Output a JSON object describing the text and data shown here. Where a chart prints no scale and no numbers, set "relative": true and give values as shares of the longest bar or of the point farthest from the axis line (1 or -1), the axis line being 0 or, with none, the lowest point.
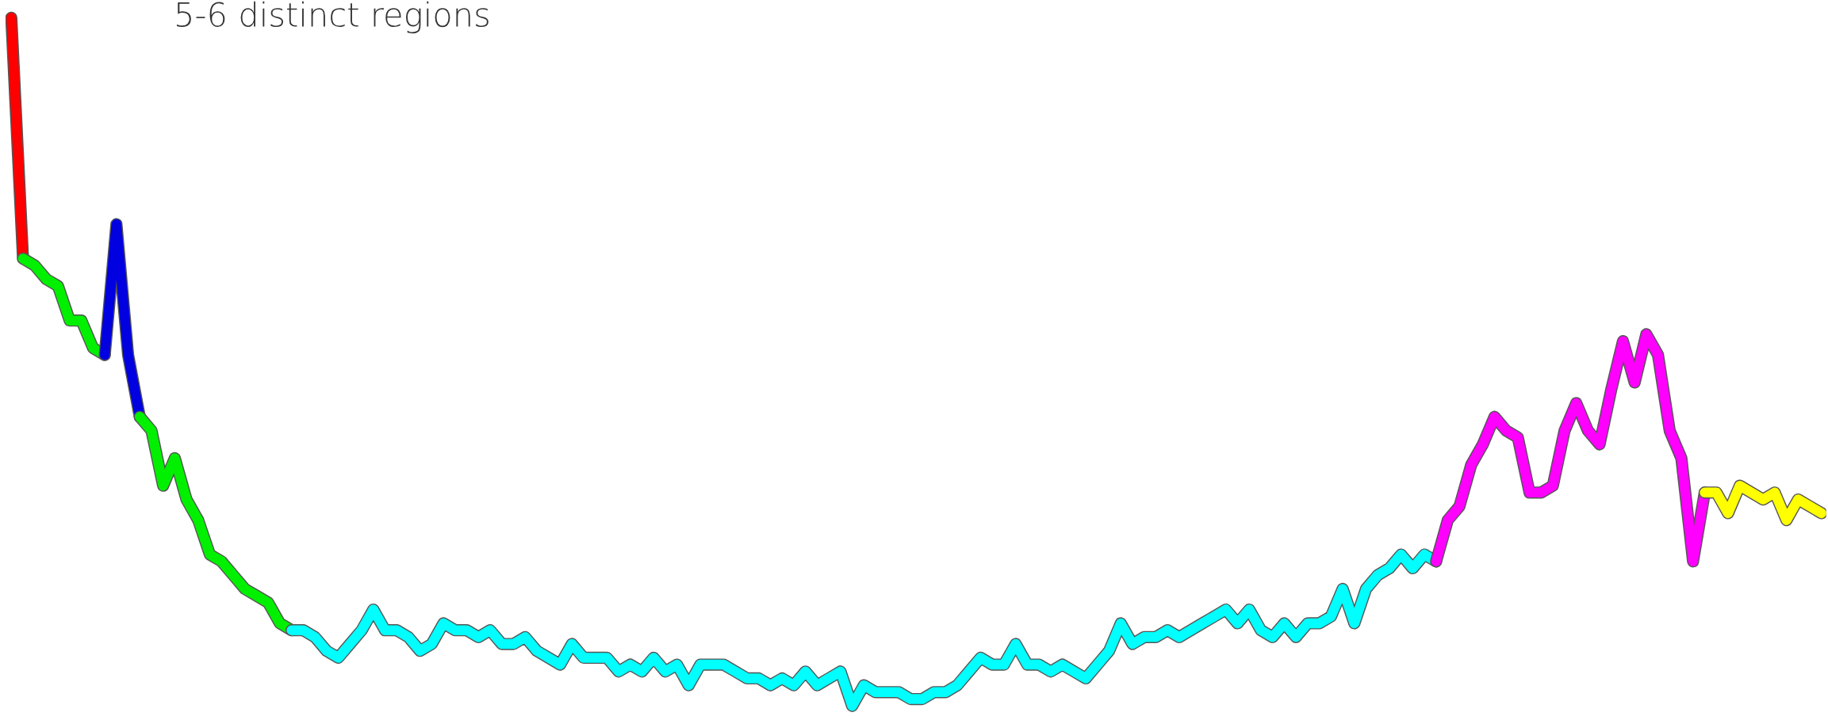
{
  "chart_data": {
    "type": "line",
    "relative": true,
    "title": "5-6 distinct regions",
    "categories": [
      null,
      null,
      null,
      null,
      null,
      null,
      null,
      null,
      null,
      null,
      null,
      null,
      null,
      null,
      null,
      null,
      null,
      null,
      null,
      null,
      null,
      null,
      null,
      null,
      null,
      null,
      null,
      null,
      null,
      null,
      null,
      null,
      null,
      null,
      null,
      null,
      null,
      null,
      null,
      null,
      null,
      null,
      null,
      null,
      null,
      null,
      null,
      null,
      null,
      null,
      null,
      null,
      null,
      null,
      null,
      null,
      null,
      null,
      null,
      null,
      null,
      null,
      null,
      null,
      null,
      null,
      null,
      null,
      null,
      null,
      null,
      null,
      null,
      null,
      null,
      null,
      null,
      null,
      null,
      null,
      null,
      null,
      null,
      null,
      null,
      null,
      null,
      null,
      null,
      null,
      null,
      null,
      null,
      null,
      null,
      null,
      null,
      null,
      null,
      null,
      null,
      null,
      null,
      null,
      null,
      null,
      null,
      null,
      null,
      null,
      null,
      null,
      null,
      null,
      null,
      null,
      null,
      null,
      null,
      null,
      null,
      null,
      null,
      null,
      null,
      null,
      null,
      null,
      null,
      null,
      null,
      null,
      null,
      null,
      null,
      null,
      null,
      null,
      null,
      null,
      null,
      null,
      null,
      null,
      null,
      null,
      null,
      null,
      null,
      null,
      null,
      null,
      null,
      null,
      null,
      null
    ],
    "series": [
      {
        "color": "#ff0000",
        "values": [
          1.0,
          0.65,
          null,
          null,
          null,
          null,
          null,
          null,
          null,
          null,
          null,
          null,
          null,
          null,
          null,
          null,
          null,
          null,
          null,
          null,
          null,
          null,
          null,
          null,
          null,
          null,
          null,
          null,
          null,
          null,
          null,
          null,
          null,
          null,
          null,
          null,
          null,
          null,
          null,
          null,
          null,
          null,
          null,
          null,
          null,
          null,
          null,
          null,
          null,
          null,
          null,
          null,
          null,
          null,
          null,
          null,
          null,
          null,
          null,
          null,
          null,
          null,
          null,
          null,
          null,
          null,
          null,
          null,
          null,
          null,
          null,
          null,
          null,
          null,
          null,
          null,
          null,
          null,
          null,
          null,
          null,
          null,
          null,
          null,
          null,
          null,
          null,
          null,
          null,
          null,
          null,
          null,
          null,
          null,
          null,
          null,
          null,
          null,
          null,
          null,
          null,
          null,
          null,
          null,
          null,
          null,
          null,
          null,
          null,
          null,
          null,
          null,
          null,
          null,
          null,
          null,
          null,
          null,
          null,
          null,
          null,
          null,
          null,
          null,
          null,
          null,
          null,
          null,
          null,
          null,
          null,
          null,
          null,
          null,
          null,
          null,
          null,
          null,
          null,
          null,
          null,
          null,
          null,
          null,
          null,
          null,
          null,
          null,
          null,
          null,
          null,
          null,
          null,
          null,
          null,
          null
        ]
      },
      {
        "color": "#00f000",
        "values": [
          null,
          0.65,
          0.64,
          0.62,
          0.61,
          0.56,
          0.56,
          0.52,
          0.51,
          null,
          null,
          null,
          null,
          null,
          null,
          null,
          null,
          null,
          null,
          null,
          null,
          null,
          null,
          null,
          null,
          null,
          null,
          null,
          null,
          null,
          null,
          null,
          null,
          null,
          null,
          null,
          null,
          null,
          null,
          null,
          null,
          null,
          null,
          null,
          null,
          null,
          null,
          null,
          null,
          null,
          null,
          null,
          null,
          null,
          null,
          null,
          null,
          null,
          null,
          null,
          null,
          null,
          null,
          null,
          null,
          null,
          null,
          null,
          null,
          null,
          null,
          null,
          null,
          null,
          null,
          null,
          null,
          null,
          null,
          null,
          null,
          null,
          null,
          null,
          null,
          null,
          null,
          null,
          null,
          null,
          null,
          null,
          null,
          null,
          null,
          null,
          null,
          null,
          null,
          null,
          null,
          null,
          null,
          null,
          null,
          null,
          null,
          null,
          null,
          null,
          null,
          null,
          null,
          null,
          null,
          null,
          null,
          null,
          null,
          null,
          null,
          null,
          null,
          null,
          null,
          null,
          null,
          null,
          null,
          null,
          null,
          null,
          null,
          null,
          null,
          null,
          null,
          null,
          null,
          null,
          null,
          null,
          null,
          null,
          null,
          null,
          null,
          null,
          null,
          null,
          null,
          null,
          null,
          null,
          null,
          null
        ]
      },
      {
        "color": "#0000e0",
        "values": [
          null,
          null,
          null,
          null,
          null,
          null,
          null,
          null,
          0.51,
          0.7,
          0.51,
          0.42,
          null,
          null,
          null,
          null,
          null,
          null,
          null,
          null,
          null,
          null,
          null,
          null,
          null,
          null,
          null,
          null,
          null,
          null,
          null,
          null,
          null,
          null,
          null,
          null,
          null,
          null,
          null,
          null,
          null,
          null,
          null,
          null,
          null,
          null,
          null,
          null,
          null,
          null,
          null,
          null,
          null,
          null,
          null,
          null,
          null,
          null,
          null,
          null,
          null,
          null,
          null,
          null,
          null,
          null,
          null,
          null,
          null,
          null,
          null,
          null,
          null,
          null,
          null,
          null,
          null,
          null,
          null,
          null,
          null,
          null,
          null,
          null,
          null,
          null,
          null,
          null,
          null,
          null,
          null,
          null,
          null,
          null,
          null,
          null,
          null,
          null,
          null,
          null,
          null,
          null,
          null,
          null,
          null,
          null,
          null,
          null,
          null,
          null,
          null,
          null,
          null,
          null,
          null,
          null,
          null,
          null,
          null,
          null,
          null,
          null,
          null,
          null,
          null,
          null,
          null,
          null,
          null,
          null,
          null,
          null,
          null,
          null,
          null,
          null,
          null,
          null,
          null,
          null,
          null,
          null,
          null,
          null,
          null,
          null,
          null,
          null,
          null,
          null,
          null,
          null,
          null,
          null,
          null,
          null
        ]
      },
      {
        "color": "#00f000",
        "values": [
          null,
          null,
          null,
          null,
          null,
          null,
          null,
          null,
          null,
          null,
          null,
          0.42,
          0.4,
          0.32,
          0.36,
          0.3,
          0.27,
          0.22,
          0.21,
          0.19,
          0.17,
          0.16,
          0.15,
          0.12,
          0.11,
          null,
          null,
          null,
          null,
          null,
          null,
          null,
          null,
          null,
          null,
          null,
          null,
          null,
          null,
          null,
          null,
          null,
          null,
          null,
          null,
          null,
          null,
          null,
          null,
          null,
          null,
          null,
          null,
          null,
          null,
          null,
          null,
          null,
          null,
          null,
          null,
          null,
          null,
          null,
          null,
          null,
          null,
          null,
          null,
          null,
          null,
          null,
          null,
          null,
          null,
          null,
          null,
          null,
          null,
          null,
          null,
          null,
          null,
          null,
          null,
          null,
          null,
          null,
          null,
          null,
          null,
          null,
          null,
          null,
          null,
          null,
          null,
          null,
          null,
          null,
          null,
          null,
          null,
          null,
          null,
          null,
          null,
          null,
          null,
          null,
          null,
          null,
          null,
          null,
          null,
          null,
          null,
          null,
          null,
          null,
          null,
          null,
          null,
          null,
          null,
          null,
          null,
          null,
          null,
          null,
          null,
          null,
          null,
          null,
          null,
          null,
          null,
          null,
          null,
          null,
          null,
          null,
          null,
          null,
          null,
          null,
          null,
          null,
          null,
          null,
          null,
          null,
          null,
          null,
          null,
          null
        ]
      },
      {
        "color": "#00ffff",
        "values": [
          null,
          null,
          null,
          null,
          null,
          null,
          null,
          null,
          null,
          null,
          null,
          null,
          null,
          null,
          null,
          null,
          null,
          null,
          null,
          null,
          null,
          null,
          null,
          null,
          0.11,
          0.11,
          0.1,
          0.08,
          0.07,
          0.09,
          0.11,
          0.14,
          0.11,
          0.11,
          0.1,
          0.08,
          0.09,
          0.12,
          0.11,
          0.11,
          0.1,
          0.11,
          0.09,
          0.09,
          0.1,
          0.08,
          0.07,
          0.06,
          0.09,
          0.07,
          0.07,
          0.07,
          0.05,
          0.06,
          0.05,
          0.07,
          0.05,
          0.06,
          0.03,
          0.06,
          0.06,
          0.06,
          0.05,
          0.04,
          0.04,
          0.03,
          0.04,
          0.03,
          0.05,
          0.03,
          0.04,
          0.05,
          0,
          0.03,
          0.02,
          0.02,
          0.02,
          0.01,
          0.01,
          0.02,
          0.02,
          0.03,
          0.05,
          0.07,
          0.06,
          0.06,
          0.09,
          0.06,
          0.06,
          0.05,
          0.06,
          0.05,
          0.04,
          0.06,
          0.08,
          0.12,
          0.09,
          0.1,
          0.1,
          0.11,
          0.1,
          0.11,
          0.12,
          0.13,
          0.14,
          0.12,
          0.14,
          0.11,
          0.1,
          0.12,
          0.1,
          0.12,
          0.12,
          0.13,
          0.17,
          0.12,
          0.17,
          0.19,
          0.2,
          0.22,
          0.2,
          0.22,
          0.21,
          null,
          null,
          null,
          null,
          null,
          null,
          null,
          null,
          null,
          null,
          null,
          null,
          null,
          null,
          null,
          null,
          null,
          null,
          null,
          null,
          null,
          null,
          null,
          null,
          null,
          null,
          null,
          null,
          null,
          null,
          null,
          null,
          null
        ]
      },
      {
        "color": "#ff00ff",
        "values": [
          null,
          null,
          null,
          null,
          null,
          null,
          null,
          null,
          null,
          null,
          null,
          null,
          null,
          null,
          null,
          null,
          null,
          null,
          null,
          null,
          null,
          null,
          null,
          null,
          null,
          null,
          null,
          null,
          null,
          null,
          null,
          null,
          null,
          null,
          null,
          null,
          null,
          null,
          null,
          null,
          null,
          null,
          null,
          null,
          null,
          null,
          null,
          null,
          null,
          null,
          null,
          null,
          null,
          null,
          null,
          null,
          null,
          null,
          null,
          null,
          null,
          null,
          null,
          null,
          null,
          null,
          null,
          null,
          null,
          null,
          null,
          null,
          null,
          null,
          null,
          null,
          null,
          null,
          null,
          null,
          null,
          null,
          null,
          null,
          null,
          null,
          null,
          null,
          null,
          null,
          null,
          null,
          null,
          null,
          null,
          null,
          null,
          null,
          null,
          null,
          null,
          null,
          null,
          null,
          null,
          null,
          null,
          null,
          null,
          null,
          null,
          null,
          null,
          null,
          null,
          null,
          null,
          null,
          null,
          null,
          null,
          null,
          0.21,
          0.27,
          0.29,
          0.35,
          0.38,
          0.42,
          0.4,
          0.39,
          0.31,
          0.31,
          0.32,
          0.4,
          0.44,
          0.4,
          0.38,
          0.46,
          0.53,
          0.47,
          0.54,
          0.51,
          0.4,
          0.36,
          0.21,
          0.31,
          null,
          null,
          null,
          null,
          null,
          null,
          null,
          null,
          null,
          null
        ]
      },
      {
        "color": "#ffff00",
        "values": [
          null,
          null,
          null,
          null,
          null,
          null,
          null,
          null,
          null,
          null,
          null,
          null,
          null,
          null,
          null,
          null,
          null,
          null,
          null,
          null,
          null,
          null,
          null,
          null,
          null,
          null,
          null,
          null,
          null,
          null,
          null,
          null,
          null,
          null,
          null,
          null,
          null,
          null,
          null,
          null,
          null,
          null,
          null,
          null,
          null,
          null,
          null,
          null,
          null,
          null,
          null,
          null,
          null,
          null,
          null,
          null,
          null,
          null,
          null,
          null,
          null,
          null,
          null,
          null,
          null,
          null,
          null,
          null,
          null,
          null,
          null,
          null,
          null,
          null,
          null,
          null,
          null,
          null,
          null,
          null,
          null,
          null,
          null,
          null,
          null,
          null,
          null,
          null,
          null,
          null,
          null,
          null,
          null,
          null,
          null,
          null,
          null,
          null,
          null,
          null,
          null,
          null,
          null,
          null,
          null,
          null,
          null,
          null,
          null,
          null,
          null,
          null,
          null,
          null,
          null,
          null,
          null,
          null,
          null,
          null,
          null,
          null,
          null,
          null,
          null,
          null,
          null,
          null,
          null,
          null,
          null,
          null,
          null,
          null,
          null,
          null,
          null,
          null,
          null,
          null,
          null,
          null,
          null,
          null,
          null,
          0.31,
          0.31,
          0.28,
          0.32,
          0.31,
          0.3,
          0.31,
          0.27,
          0.3,
          0.29,
          0.28
        ]
      }
    ]
  }
}
